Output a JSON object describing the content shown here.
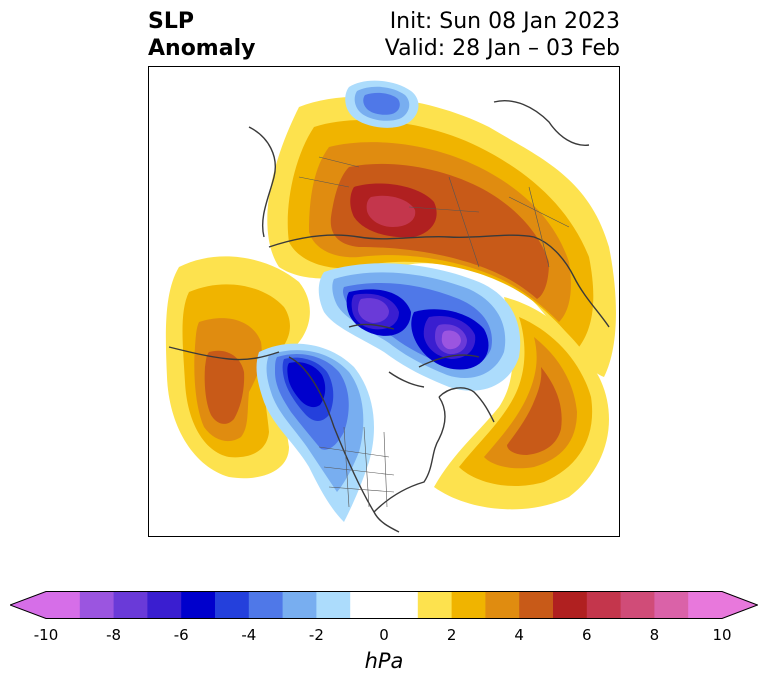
{
  "title": {
    "left_line1": "SLP",
    "left_line2": "Anomaly",
    "init": "Init: Sun 08 Jan 2023",
    "valid": "Valid: 28 Jan – 03 Feb"
  },
  "colorbar": {
    "unit": "hPa",
    "min": -10,
    "max": 10,
    "step": 1,
    "tick_labels": [
      "-10",
      "-8",
      "-6",
      "-4",
      "-2",
      "0",
      "2",
      "4",
      "6",
      "8",
      "10"
    ],
    "colors": [
      "#d66ee8",
      "#9b55e0",
      "#6a3ad8",
      "#3a1ed0",
      "#0000cc",
      "#2440dc",
      "#4f78e8",
      "#78aef0",
      "#acdcfc",
      "#ffffff",
      "#ffffff",
      "#fde24e",
      "#f0b400",
      "#e08c10",
      "#c85a18",
      "#b02020",
      "#c4364c",
      "#d04c78",
      "#da62a8",
      "#e878dc"
    ],
    "extend_low_color": "#d66ee8",
    "extend_high_color": "#e878dc"
  },
  "map": {
    "projection": "north-polar-stereographic",
    "field": "sea level pressure anomaly",
    "features": [
      "positive-anomaly-eurasia-arctic",
      "negative-anomaly-canada-greenland",
      "negative-anomaly-alaska-canada",
      "positive-anomaly-north-pacific",
      "positive-anomaly-north-atlantic",
      "negative-anomaly-kara-sea"
    ]
  }
}
